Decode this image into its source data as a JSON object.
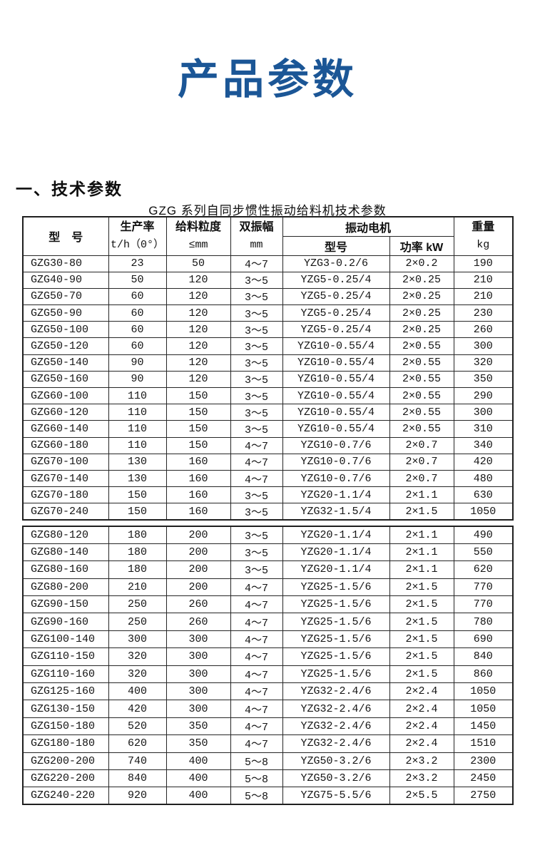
{
  "page": {
    "title": "产品参数",
    "section_heading": "一、技术参数",
    "table_caption": "GZG 系列自同步惯性振动给料机技术参数"
  },
  "colors": {
    "title_blue": "#1b5696",
    "border": "#262626"
  },
  "table": {
    "headers": {
      "model": "型　号",
      "rate_line1": "生产率",
      "rate_line2": "t/h（0°）",
      "size_line1": "给料粒度",
      "size_line2": "≤mm",
      "amplitude_line1": "双振幅",
      "amplitude_line2": "mm",
      "motor": "振动电机",
      "motor_model": "型号",
      "motor_power": "功率 kW",
      "weight_line1": "重量",
      "weight_line2": "kg"
    },
    "rows_part1": [
      [
        "GZG30-80",
        "23",
        "50",
        "4～7",
        "YZG3-0.2/6",
        "2×0.2",
        "190"
      ],
      [
        "GZG40-90",
        "50",
        "120",
        "3～5",
        "YZG5-0.25/4",
        "2×0.25",
        "210"
      ],
      [
        "GZG50-70",
        "60",
        "120",
        "3～5",
        "YZG5-0.25/4",
        "2×0.25",
        "210"
      ],
      [
        "GZG50-90",
        "60",
        "120",
        "3～5",
        "YZG5-0.25/4",
        "2×0.25",
        "230"
      ],
      [
        "GZG50-100",
        "60",
        "120",
        "3～5",
        "YZG5-0.25/4",
        "2×0.25",
        "260"
      ],
      [
        "GZG50-120",
        "60",
        "120",
        "3～5",
        "YZG10-0.55/4",
        "2×0.55",
        "300"
      ],
      [
        "GZG50-140",
        "90",
        "120",
        "3～5",
        "YZG10-0.55/4",
        "2×0.55",
        "320"
      ],
      [
        "GZG50-160",
        "90",
        "120",
        "3～5",
        "YZG10-0.55/4",
        "2×0.55",
        "350"
      ],
      [
        "GZG60-100",
        "110",
        "150",
        "3～5",
        "YZG10-0.55/4",
        "2×0.55",
        "290"
      ],
      [
        "GZG60-120",
        "110",
        "150",
        "3～5",
        "YZG10-0.55/4",
        "2×0.55",
        "300"
      ],
      [
        "GZG60-140",
        "110",
        "150",
        "3～5",
        "YZG10-0.55/4",
        "2×0.55",
        "310"
      ],
      [
        "GZG60-180",
        "110",
        "150",
        "4～7",
        "YZG10-0.7/6",
        "2×0.7",
        "340"
      ],
      [
        "GZG70-100",
        "130",
        "160",
        "4～7",
        "YZG10-0.7/6",
        "2×0.7",
        "420"
      ],
      [
        "GZG70-140",
        "130",
        "160",
        "4～7",
        "YZG10-0.7/6",
        "2×0.7",
        "480"
      ],
      [
        "GZG70-180",
        "150",
        "160",
        "3～5",
        "YZG20-1.1/4",
        "2×1.1",
        "630"
      ],
      [
        "GZG70-240",
        "150",
        "160",
        "3～5",
        "YZG32-1.5/4",
        "2×1.5",
        "1050"
      ]
    ],
    "rows_part2": [
      [
        "GZG80-120",
        "180",
        "200",
        "3～5",
        "YZG20-1.1/4",
        "2×1.1",
        "490"
      ],
      [
        "GZG80-140",
        "180",
        "200",
        "3～5",
        "YZG20-1.1/4",
        "2×1.1",
        "550"
      ],
      [
        "GZG80-160",
        "180",
        "200",
        "3～5",
        "YZG20-1.1/4",
        "2×1.1",
        "620"
      ],
      [
        "GZG80-200",
        "210",
        "200",
        "4～7",
        "YZG25-1.5/6",
        "2×1.5",
        "770"
      ],
      [
        "GZG90-150",
        "250",
        "260",
        "4～7",
        "YZG25-1.5/6",
        "2×1.5",
        "770"
      ],
      [
        "GZG90-160",
        "250",
        "260",
        "4～7",
        "YZG25-1.5/6",
        "2×1.5",
        "780"
      ],
      [
        "GZG100-140",
        "300",
        "300",
        "4～7",
        "YZG25-1.5/6",
        "2×1.5",
        "690"
      ],
      [
        "GZG110-150",
        "320",
        "300",
        "4～7",
        "YZG25-1.5/6",
        "2×1.5",
        "840"
      ],
      [
        "GZG110-160",
        "320",
        "300",
        "4～7",
        "YZG25-1.5/6",
        "2×1.5",
        "860"
      ],
      [
        "GZG125-160",
        "400",
        "300",
        "4～7",
        "YZG32-2.4/6",
        "2×2.4",
        "1050"
      ],
      [
        "GZG130-150",
        "420",
        "300",
        "4～7",
        "YZG32-2.4/6",
        "2×2.4",
        "1050"
      ],
      [
        "GZG150-180",
        "520",
        "350",
        "4～7",
        "YZG32-2.4/6",
        "2×2.4",
        "1450"
      ],
      [
        "GZG180-180",
        "620",
        "350",
        "4～7",
        "YZG32-2.4/6",
        "2×2.4",
        "1510"
      ],
      [
        "GZG200-200",
        "740",
        "400",
        "5～8",
        "YZG50-3.2/6",
        "2×3.2",
        "2300"
      ],
      [
        "GZG220-200",
        "840",
        "400",
        "5～8",
        "YZG50-3.2/6",
        "2×3.2",
        "2450"
      ],
      [
        "GZG240-220",
        "920",
        "400",
        "5～8",
        "YZG75-5.5/6",
        "2×5.5",
        "2750"
      ]
    ]
  }
}
